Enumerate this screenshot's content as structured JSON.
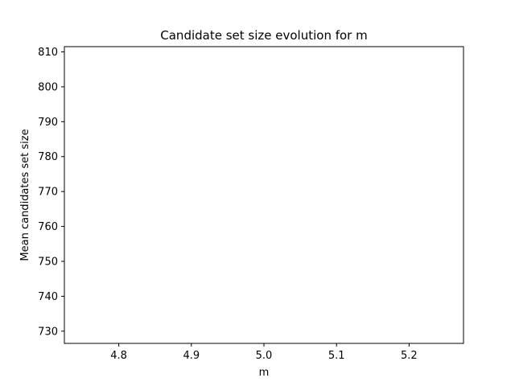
{
  "chart_data": {
    "type": "line",
    "title": "Candidate set size evolution for m",
    "xlabel": "m",
    "ylabel": "Mean candidates set size",
    "xlim": [
      4.725,
      5.275
    ],
    "ylim": [
      726.5,
      811.5
    ],
    "xticks": [
      4.8,
      4.9,
      5.0,
      5.1,
      5.2
    ],
    "xtick_labels": [
      "4.8",
      "4.9",
      "5.0",
      "5.1",
      "5.2"
    ],
    "yticks": [
      730,
      740,
      750,
      760,
      770,
      780,
      790,
      800,
      810
    ],
    "ytick_labels": [
      "730",
      "740",
      "750",
      "760",
      "770",
      "780",
      "790",
      "800",
      "810"
    ],
    "grid": false,
    "series": []
  },
  "colors": {
    "axes": "#000000",
    "background": "#ffffff"
  }
}
